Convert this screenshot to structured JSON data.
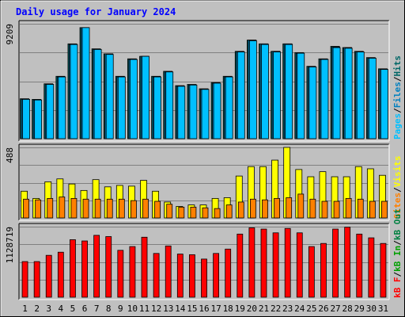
{
  "chart_data": {
    "type": "bar",
    "title": "Daily usage for January 2024",
    "categories": [
      "1",
      "2",
      "3",
      "4",
      "5",
      "6",
      "7",
      "8",
      "9",
      "10",
      "11",
      "12",
      "13",
      "14",
      "15",
      "16",
      "17",
      "18",
      "19",
      "20",
      "21",
      "22",
      "23",
      "24",
      "25",
      "26",
      "27",
      "28",
      "29",
      "30",
      "31"
    ],
    "weekend_days": [
      "6",
      "7",
      "13",
      "14",
      "20",
      "21",
      "27",
      "28"
    ],
    "colors": {
      "title": "#0000ff",
      "weekday_label": "#000000",
      "weekend_label": "#008040",
      "hits": "#006666",
      "files": "#0080c0",
      "pages": "#00c0ff",
      "visits": "#ffff00",
      "sites": "#ff8000",
      "kb_f": "#ff0000",
      "kb_in": "#00a000",
      "kb_out": "#008040",
      "grid": "#808080",
      "panel_bg": "#c0c0c0"
    },
    "panels": [
      {
        "name": "hits-files-pages",
        "ymax_label": "9209",
        "ylim": [
          0,
          9209
        ],
        "legend": [
          {
            "text": "Pages",
            "color": "#00c0ff"
          },
          {
            "text": "/",
            "color": "#000000"
          },
          {
            "text": "Files",
            "color": "#0080c0"
          },
          {
            "text": "/",
            "color": "#000000"
          },
          {
            "text": "Hits",
            "color": "#006666"
          }
        ],
        "series": [
          {
            "name": "Hits",
            "values": [
              3200,
              3150,
              4400,
              5000,
              7600,
              8900,
              7200,
              6800,
              5000,
              6400,
              6600,
              5000,
              5400,
              4250,
              4350,
              4000,
              4500,
              5000,
              7000,
              7900,
              7600,
              7000,
              7600,
              6900,
              5800,
              6400,
              7400,
              7300,
              7000,
              6500,
              5600
            ]
          },
          {
            "name": "Files",
            "values": [
              3150,
              3100,
              4350,
              4950,
              7550,
              8900,
              7150,
              6800,
              4950,
              6350,
              6600,
              4950,
              5350,
              4200,
              4300,
              3950,
              4450,
              4950,
              6950,
              7900,
              7600,
              7000,
              7600,
              6850,
              5750,
              6350,
              7350,
              7300,
              6950,
              6450,
              5550
            ]
          },
          {
            "name": "Pages",
            "values": [
              3150,
              3100,
              4350,
              4950,
              7550,
              8900,
              7150,
              6750,
              4950,
              6350,
              6600,
              4950,
              5350,
              4200,
              4300,
              3950,
              4450,
              4950,
              6950,
              7850,
              7550,
              6950,
              7550,
              6850,
              5750,
              6350,
              7300,
              7250,
              6950,
              6450,
              5550
            ]
          }
        ]
      },
      {
        "name": "visits-sites",
        "ymax_label": "488",
        "ylim": [
          0,
          488
        ],
        "legend": [
          {
            "text": "Sites",
            "color": "#ff8000"
          },
          {
            "text": "/",
            "color": "#000000"
          },
          {
            "text": "Visits",
            "color": "#ffff00"
          }
        ],
        "series": [
          {
            "name": "Visits",
            "values": [
              185,
              135,
              250,
              270,
              235,
              190,
              265,
              215,
              225,
              220,
              260,
              185,
              110,
              80,
              90,
              90,
              135,
              140,
              290,
              355,
              355,
              400,
              488,
              335,
              285,
              320,
              285,
              285,
              355,
              340,
              295
            ]
          },
          {
            "name": "Sites",
            "values": [
              130,
              125,
              135,
              145,
              135,
              130,
              130,
              130,
              130,
              120,
              130,
              115,
              95,
              75,
              75,
              70,
              65,
              90,
              110,
              130,
              125,
              135,
              140,
              165,
              130,
              115,
              115,
              135,
              130,
              115,
              115
            ]
          }
        ]
      },
      {
        "name": "kb",
        "ymax_label": "1128719",
        "ylim": [
          0,
          1128719
        ],
        "legend": [
          {
            "text": "kB F",
            "color": "#ff0000"
          },
          {
            "text": "/",
            "color": "#000000"
          },
          {
            "text": "kB In",
            "color": "#00a000"
          },
          {
            "text": "/",
            "color": "#000000"
          },
          {
            "text": "kB Out",
            "color": "#008040"
          }
        ],
        "series": [
          {
            "name": "kB F",
            "values": [
              570000,
              570000,
              670000,
              720000,
              920000,
              900000,
              990000,
              970000,
              750000,
              810000,
              960000,
              700000,
              820000,
              690000,
              680000,
              610000,
              700000,
              770000,
              1010000,
              1110000,
              1090000,
              1030000,
              1100000,
              1030000,
              810000,
              860000,
              1090000,
              1120000,
              1010000,
              950000,
              860000
            ]
          }
        ]
      }
    ]
  }
}
